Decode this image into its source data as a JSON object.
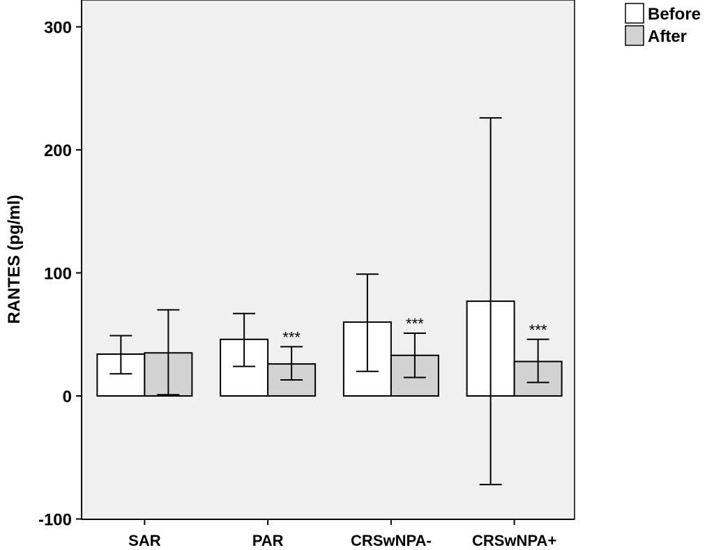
{
  "chart_data": {
    "type": "bar",
    "ylabel": "RANTES (pg/ml)",
    "ylim": [
      -100,
      320
    ],
    "yticks": [
      -100,
      0,
      100,
      200,
      300
    ],
    "categories": [
      "SAR",
      "PAR",
      "CRSwNPA-",
      "CRSwNPA+"
    ],
    "series": [
      {
        "name": "Before",
        "color": "#ffffff",
        "values": [
          34,
          46,
          60,
          77
        ],
        "err_low": [
          18,
          24,
          20,
          -72
        ],
        "err_high": [
          49,
          67,
          99,
          226
        ]
      },
      {
        "name": "After",
        "color": "#d3d3d3",
        "values": [
          35,
          26,
          33,
          28
        ],
        "err_low": [
          1,
          13,
          15,
          11
        ],
        "err_high": [
          70,
          40,
          51,
          46
        ]
      }
    ],
    "annotations": [
      {
        "category": "PAR",
        "series": "After",
        "text": "***"
      },
      {
        "category": "CRSwNPA-",
        "series": "After",
        "text": "***"
      },
      {
        "category": "CRSwNPA+",
        "series": "After",
        "text": "***"
      }
    ],
    "legend_position": "top-right",
    "background": "#f0f0f0",
    "grid": false
  }
}
